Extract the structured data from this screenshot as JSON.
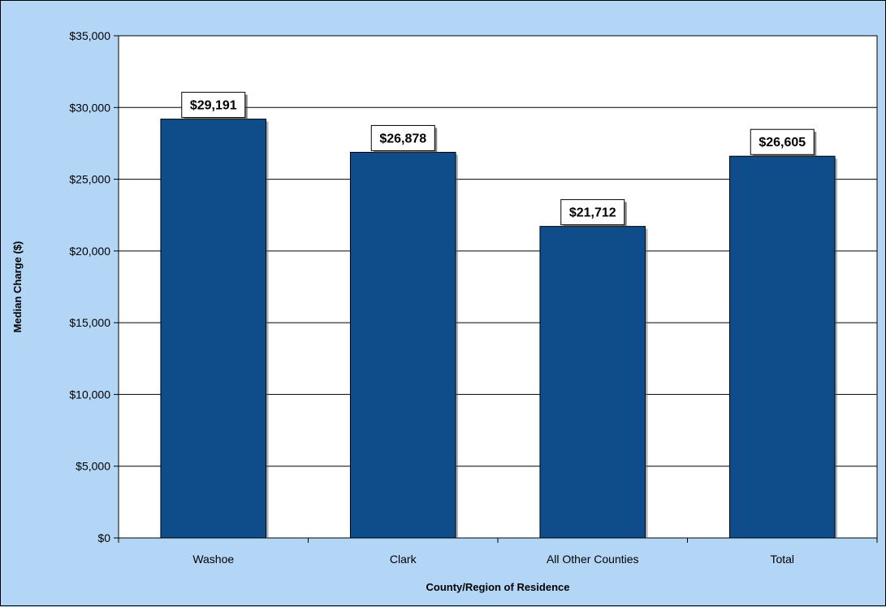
{
  "chart_data": {
    "type": "bar",
    "title": "",
    "xlabel": "County/Region of Residence",
    "ylabel": "Median Charge ($)",
    "categories": [
      "Washoe",
      "Clark",
      "All Other Counties",
      "Total"
    ],
    "values": [
      29191,
      26878,
      21712,
      26605
    ],
    "data_labels": [
      "$29,191",
      "$26,878",
      "$21,712",
      "$26,605"
    ],
    "ylim": [
      0,
      35000
    ],
    "yticks": [
      0,
      5000,
      10000,
      15000,
      20000,
      25000,
      30000,
      35000
    ],
    "ytick_labels": [
      "$0",
      "$5,000",
      "$10,000",
      "$15,000",
      "$20,000",
      "$25,000",
      "$30,000",
      "$35,000"
    ],
    "grid": "horizontal",
    "legend": "none",
    "colors": {
      "bar": "#0e4d8a",
      "plot_background": "#ffffff",
      "chart_background": "#b3d6f7"
    }
  }
}
